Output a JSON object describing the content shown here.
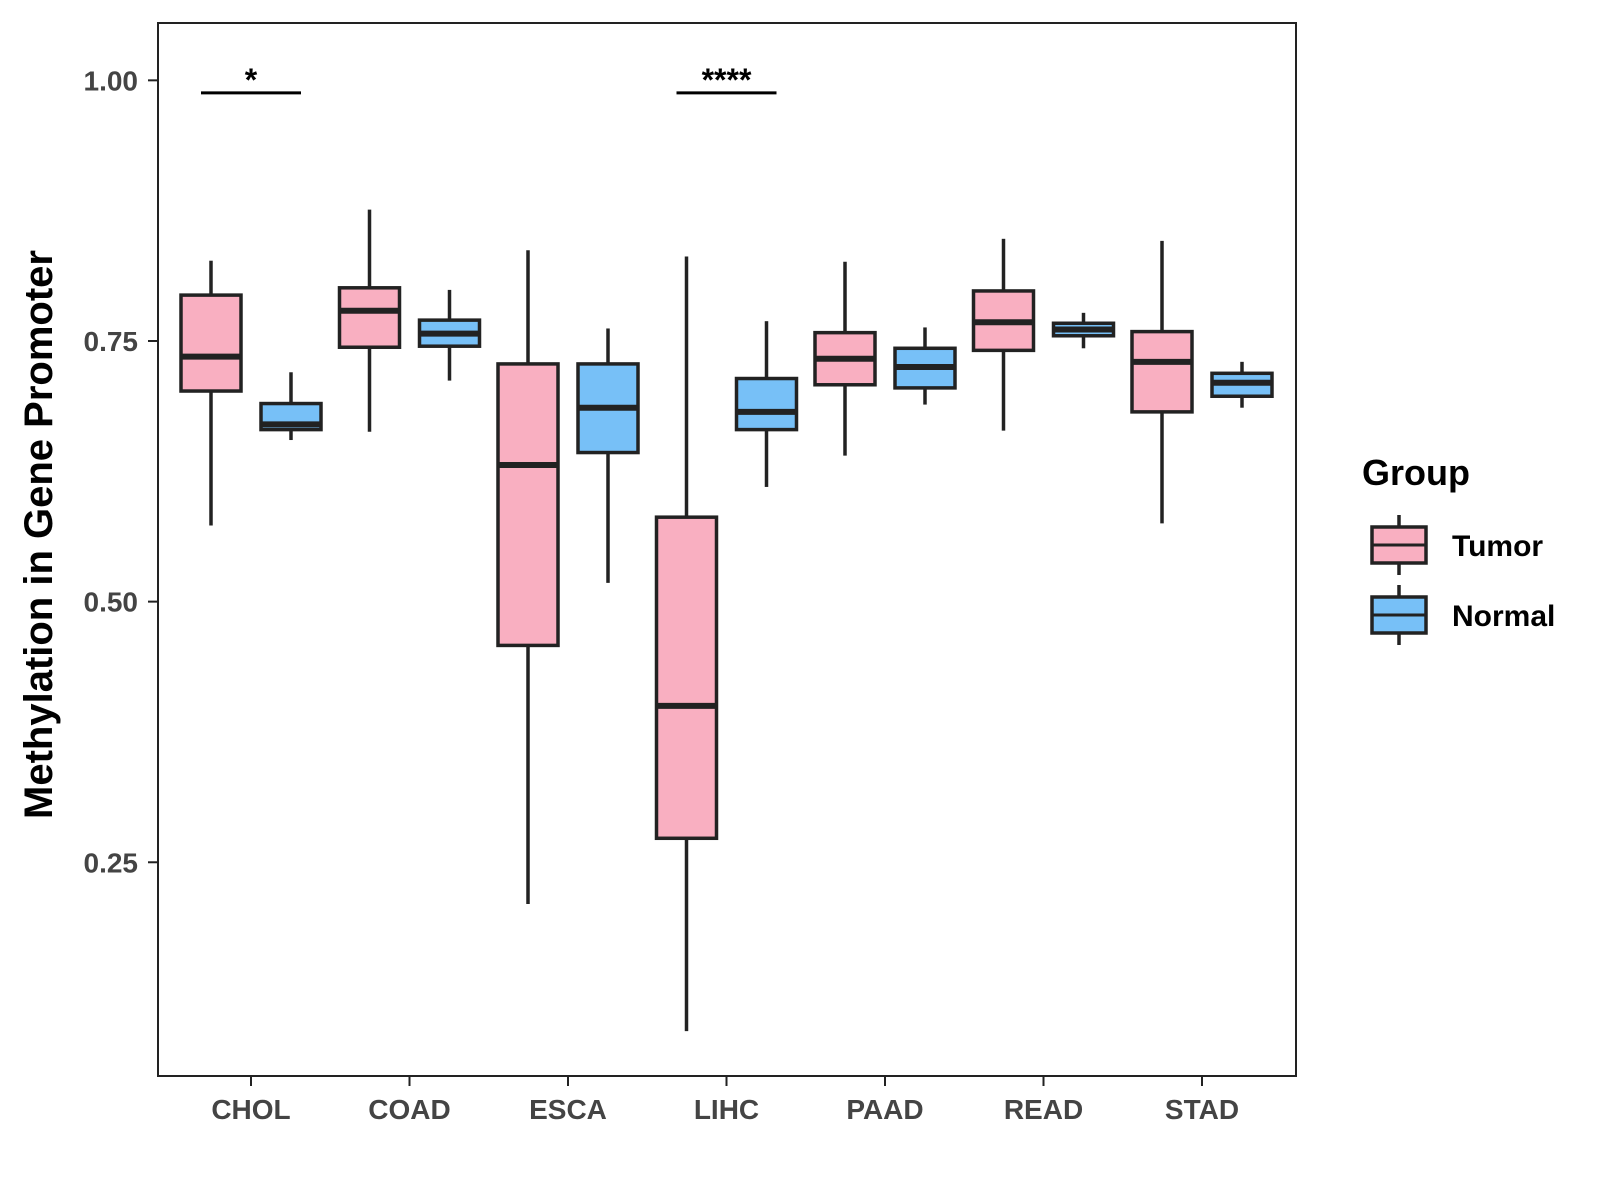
{
  "chart_data": {
    "type": "boxplot",
    "title": "",
    "xlabel": "",
    "ylabel": "Methylation in Gene Promoter",
    "ylim": [
      0.045,
      1.055
    ],
    "yticks": [
      0.25,
      0.5,
      0.75,
      1.0
    ],
    "ytick_labels": [
      "0.25",
      "0.50",
      "0.75",
      "1.00"
    ],
    "categories": [
      "CHOL",
      "COAD",
      "ESCA",
      "LIHC",
      "PAAD",
      "READ",
      "STAD"
    ],
    "legend": {
      "title": "Group",
      "placement": "right",
      "entries": [
        "Tumor",
        "Normal"
      ]
    },
    "colors": {
      "Tumor": "#F9AFC1",
      "Normal": "#77C0F7",
      "outline": "#222222"
    },
    "series": [
      {
        "name": "Tumor",
        "boxes": [
          {
            "category": "CHOL",
            "min": 0.573,
            "q1": 0.702,
            "median": 0.735,
            "q3": 0.794,
            "max": 0.827
          },
          {
            "category": "COAD",
            "min": 0.663,
            "q1": 0.744,
            "median": 0.779,
            "q3": 0.801,
            "max": 0.876
          },
          {
            "category": "ESCA",
            "min": 0.21,
            "q1": 0.458,
            "median": 0.631,
            "q3": 0.728,
            "max": 0.837
          },
          {
            "category": "LIHC",
            "min": 0.088,
            "q1": 0.273,
            "median": 0.4,
            "q3": 0.581,
            "max": 0.831
          },
          {
            "category": "PAAD",
            "min": 0.64,
            "q1": 0.708,
            "median": 0.733,
            "q3": 0.758,
            "max": 0.826
          },
          {
            "category": "READ",
            "min": 0.664,
            "q1": 0.741,
            "median": 0.768,
            "q3": 0.798,
            "max": 0.848
          },
          {
            "category": "STAD",
            "min": 0.575,
            "q1": 0.682,
            "median": 0.73,
            "q3": 0.759,
            "max": 0.846
          }
        ]
      },
      {
        "name": "Normal",
        "boxes": [
          {
            "category": "CHOL",
            "min": 0.655,
            "q1": 0.665,
            "median": 0.67,
            "q3": 0.69,
            "max": 0.72
          },
          {
            "category": "COAD",
            "min": 0.712,
            "q1": 0.745,
            "median": 0.757,
            "q3": 0.77,
            "max": 0.799
          },
          {
            "category": "ESCA",
            "min": 0.518,
            "q1": 0.643,
            "median": 0.686,
            "q3": 0.728,
            "max": 0.762
          },
          {
            "category": "LIHC",
            "min": 0.61,
            "q1": 0.665,
            "median": 0.682,
            "q3": 0.714,
            "max": 0.769
          },
          {
            "category": "PAAD",
            "min": 0.689,
            "q1": 0.705,
            "median": 0.725,
            "q3": 0.743,
            "max": 0.763
          },
          {
            "category": "READ",
            "min": 0.743,
            "q1": 0.755,
            "median": 0.761,
            "q3": 0.767,
            "max": 0.777
          },
          {
            "category": "STAD",
            "min": 0.686,
            "q1": 0.697,
            "median": 0.71,
            "q3": 0.719,
            "max": 0.73
          }
        ]
      }
    ],
    "annotations": [
      {
        "category": "CHOL",
        "label": "*",
        "y": 0.988
      },
      {
        "category": "LIHC",
        "label": "****",
        "y": 0.988
      }
    ]
  }
}
